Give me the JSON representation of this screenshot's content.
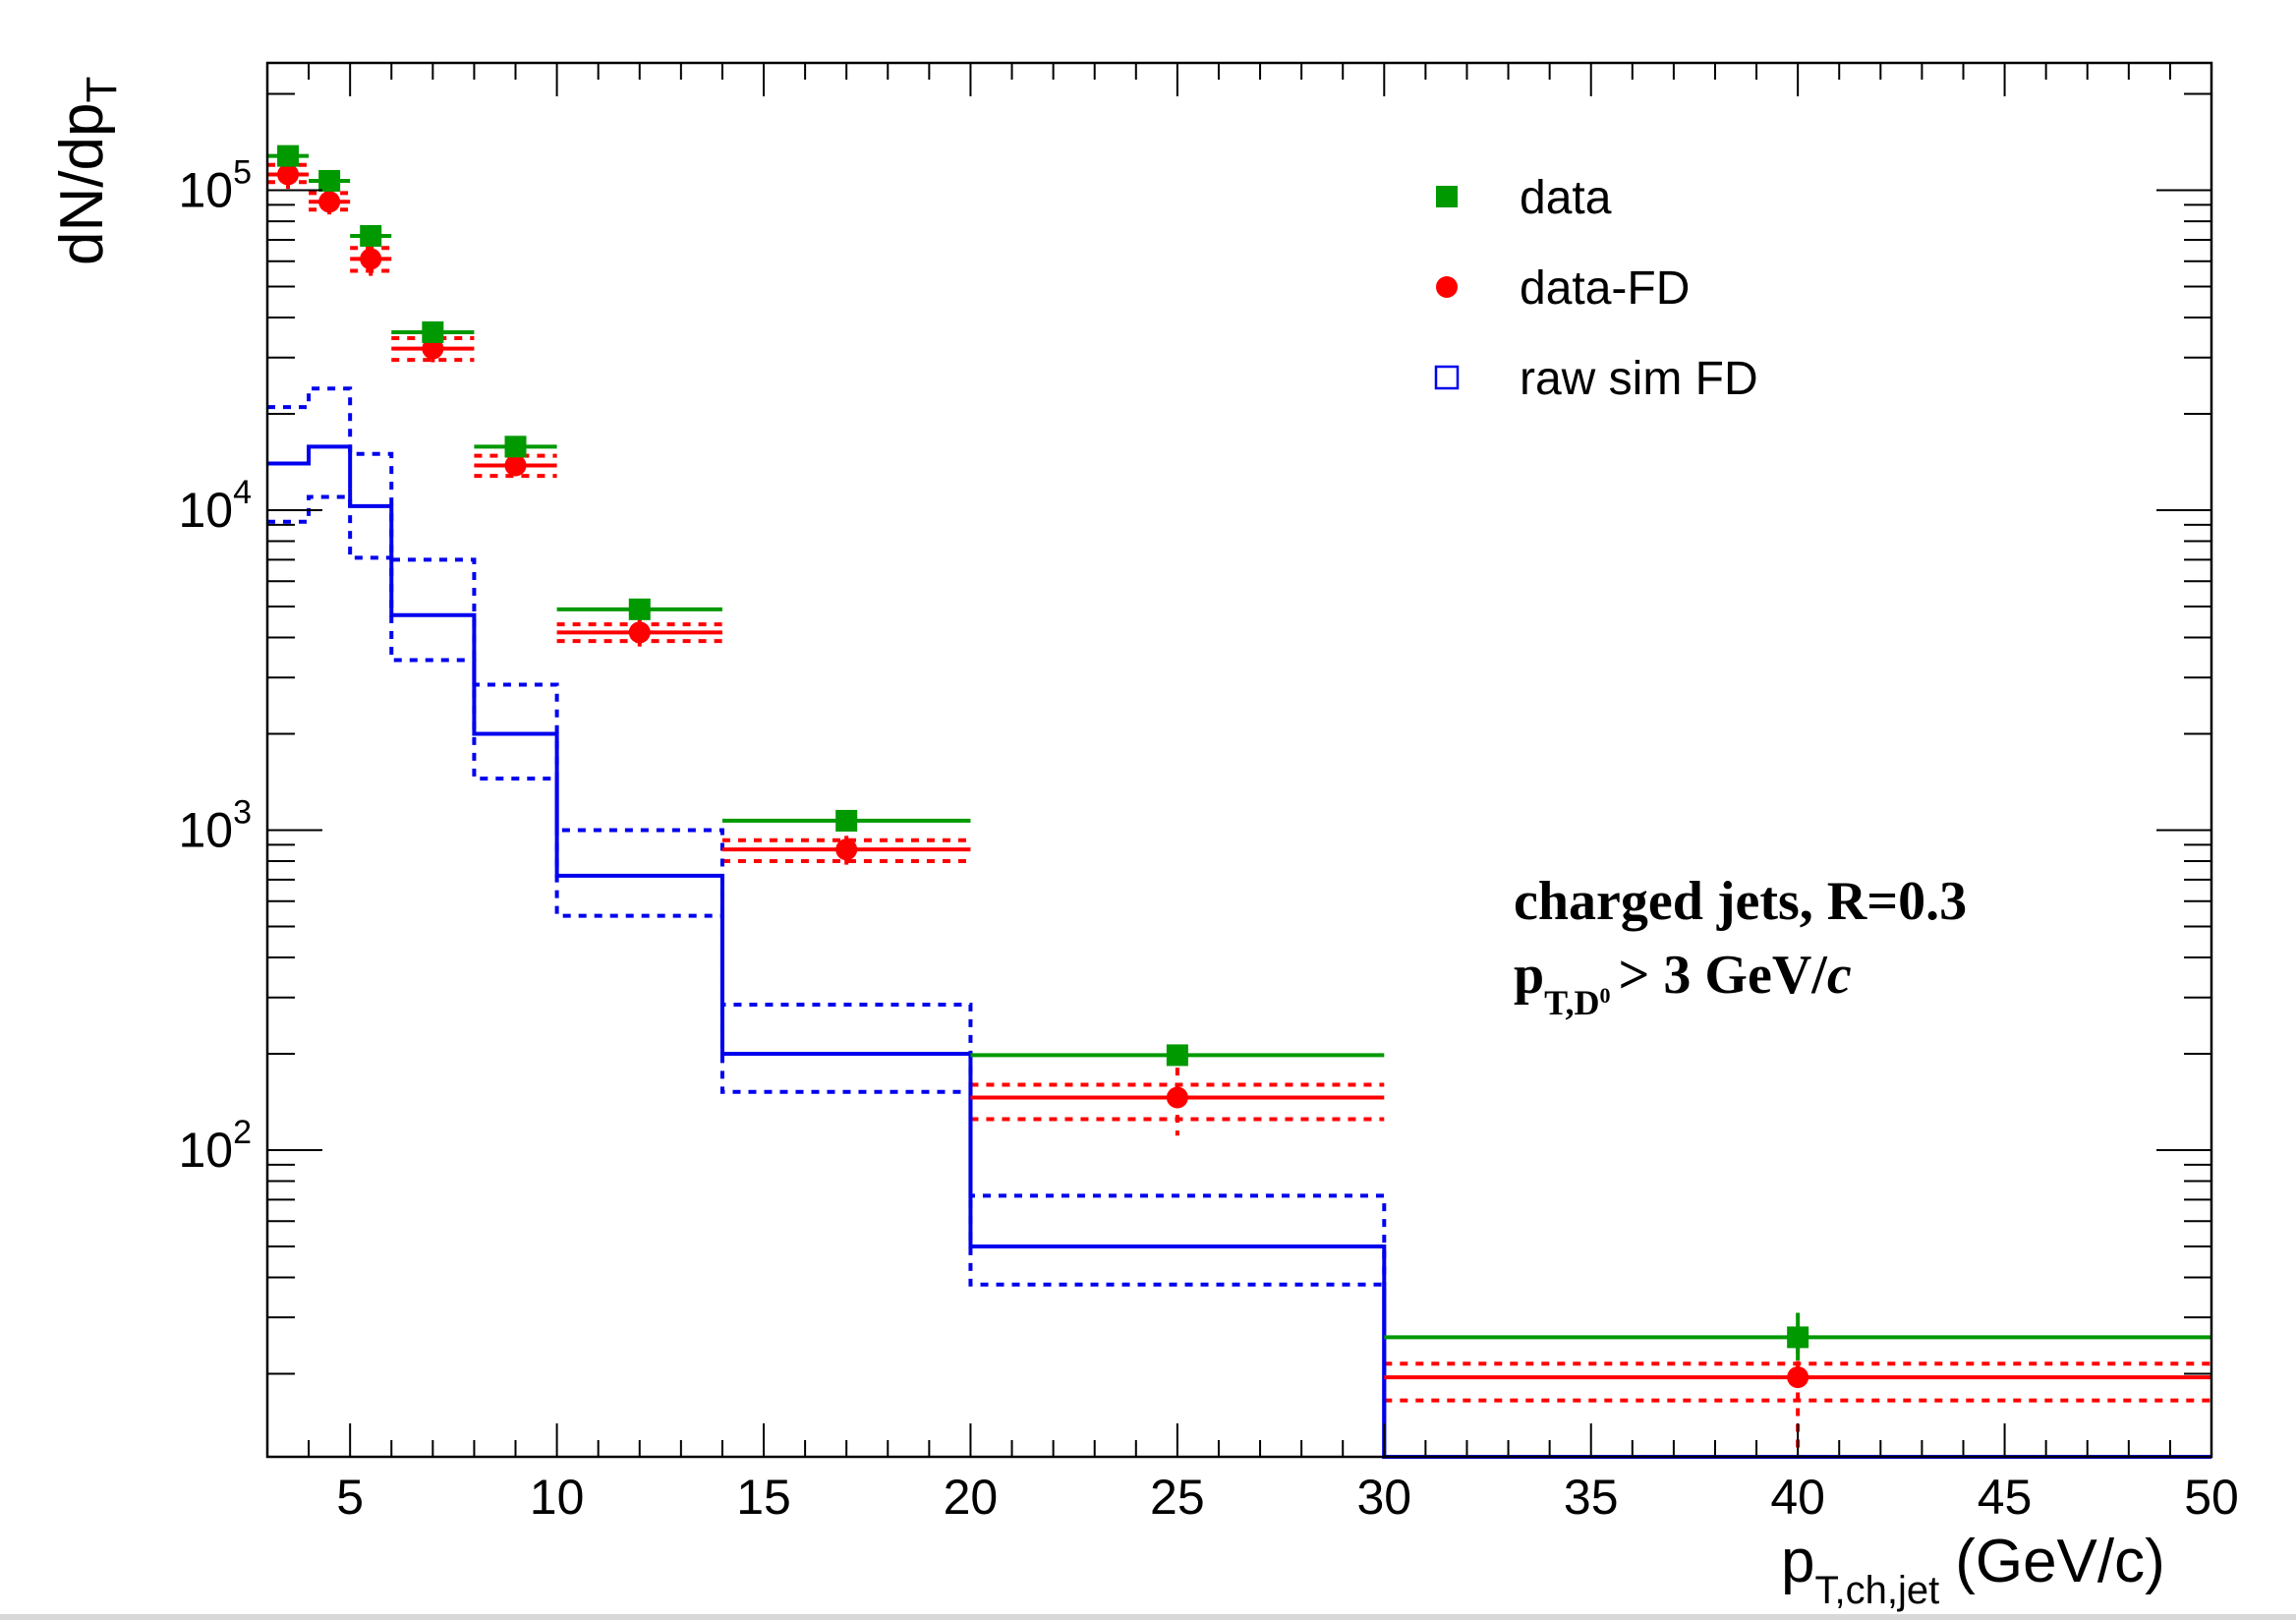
{
  "chart_data": {
    "type": "histogram-log",
    "xlabel": {
      "main": "p",
      "sub": "T,ch,jet",
      "unit": "(GeV/c)"
    },
    "ylabel": {
      "main": "dN/dp",
      "sub": "T"
    },
    "xlim": [
      3,
      50
    ],
    "ylim": [
      11,
      250000
    ],
    "ylog": true,
    "x_ticks": [
      5,
      10,
      15,
      20,
      25,
      30,
      35,
      40,
      45,
      50
    ],
    "y_ticks": [
      {
        "base": "10",
        "exp": "2",
        "value": 100
      },
      {
        "base": "10",
        "exp": "3",
        "value": 1000
      },
      {
        "base": "10",
        "exp": "4",
        "value": 10000
      },
      {
        "base": "10",
        "exp": "5",
        "value": 100000
      }
    ],
    "bin_edges": [
      3,
      4,
      5,
      6,
      8,
      10,
      14,
      20,
      30,
      50
    ],
    "legend": {
      "position": "top-right",
      "entries": [
        {
          "label": "data",
          "marker": "filled-square",
          "color": "#009900"
        },
        {
          "label": "data-FD",
          "marker": "filled-circle",
          "color": "#ff0000"
        },
        {
          "label": "raw sim FD",
          "marker": "open-square",
          "color": "#0000ee"
        }
      ]
    },
    "series": [
      {
        "name": "data",
        "color": "#009900",
        "style": "points-square",
        "x": [
          3.5,
          4.5,
          5.5,
          7,
          9,
          12,
          17,
          25,
          40
        ],
        "y": [
          128000,
          107000,
          72000,
          36000,
          15800,
          4900,
          1070,
          198,
          26
        ],
        "yerr_low": [
          0,
          0,
          0,
          0,
          0,
          0,
          0,
          0,
          4
        ],
        "yerr_high": [
          0,
          0,
          0,
          0,
          0,
          0,
          0,
          0,
          5
        ]
      },
      {
        "name": "data-FD",
        "color": "#ff0000",
        "style": "points-circle",
        "x": [
          3.5,
          4.5,
          5.5,
          7,
          9,
          12,
          17,
          25,
          40
        ],
        "y": [
          112000,
          92000,
          61000,
          32000,
          13800,
          4150,
          870,
          146,
          19.5
        ],
        "yerr_low": [
          11000,
          8000,
          7000,
          3000,
          1000,
          400,
          90,
          35,
          8
        ],
        "yerr_high": [
          11000,
          8000,
          7000,
          3000,
          1000,
          400,
          90,
          35,
          8
        ],
        "band_low": [
          106000,
          87000,
          56000,
          29500,
          12800,
          3900,
          800,
          125,
          16.5
        ],
        "band_high": [
          120000,
          98000,
          66000,
          34500,
          14800,
          4400,
          930,
          160,
          21.5
        ]
      },
      {
        "name": "raw sim FD",
        "color": "#0000ee",
        "style": "step",
        "values": [
          14000,
          15800,
          10300,
          4700,
          2000,
          720,
          200,
          50,
          10
        ],
        "band_low": [
          9200,
          11000,
          7100,
          3400,
          1450,
          540,
          152,
          38,
          10
        ],
        "band_high": [
          21000,
          24000,
          15000,
          7000,
          2850,
          1000,
          285,
          72,
          10
        ]
      }
    ],
    "annotation": {
      "line1": "charged jets, R=0.3",
      "line2_main": "p",
      "line2_sub": "T,D",
      "line2_sup": "0",
      "line2_rest": "> 3 GeV/",
      "line2_italic": "c"
    }
  }
}
